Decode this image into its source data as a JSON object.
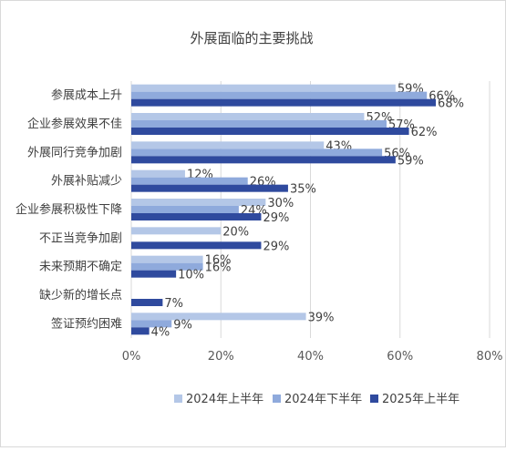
{
  "chart_data": {
    "type": "bar",
    "orientation": "horizontal",
    "title": "外展面临的主要挑战",
    "categories": [
      "参展成本上升",
      "企业参展效果不佳",
      "外展同行竞争加剧",
      "外展补贴减少",
      "企业参展积极性下降",
      "不正当竞争加剧",
      "未来预期不确定",
      "缺少新的增长点",
      "签证预约困难"
    ],
    "series": [
      {
        "name": "2024年上半年",
        "color": "#b4c7e7",
        "values": [
          59,
          52,
          43,
          12,
          30,
          20,
          16,
          null,
          39
        ],
        "labels": [
          "59%",
          "52%",
          "43%",
          "12%",
          "30%",
          "20%",
          "16%",
          "",
          "39%"
        ]
      },
      {
        "name": "2024年下半年",
        "color": "#8faadc",
        "values": [
          66,
          57,
          56,
          26,
          24,
          null,
          16,
          null,
          9
        ],
        "labels": [
          "66%",
          "57%",
          "56%",
          "26%",
          "24%",
          "",
          "16%",
          "",
          "9%"
        ]
      },
      {
        "name": "2025年上半年",
        "color": "#2f4a9e",
        "values": [
          68,
          62,
          59,
          35,
          29,
          29,
          10,
          7,
          4
        ],
        "labels": [
          "68%",
          "62%",
          "59%",
          "35%",
          "29%",
          "29%",
          "10%",
          "7%",
          "4%"
        ]
      }
    ],
    "xlim": [
      0,
      80
    ],
    "x_ticks": [
      0,
      20,
      40,
      60,
      80
    ],
    "x_tick_labels": [
      "0%",
      "20%",
      "40%",
      "60%",
      "80%"
    ],
    "grid": true,
    "legend_position": "bottom"
  }
}
